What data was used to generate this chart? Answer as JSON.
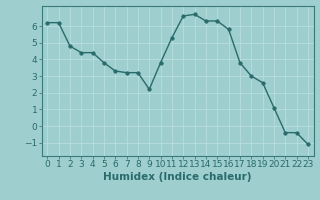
{
  "x": [
    0,
    1,
    2,
    3,
    4,
    5,
    6,
    7,
    8,
    9,
    10,
    11,
    12,
    13,
    14,
    15,
    16,
    17,
    18,
    19,
    20,
    21,
    22,
    23
  ],
  "y": [
    6.2,
    6.2,
    4.8,
    4.4,
    4.4,
    3.8,
    3.3,
    3.2,
    3.2,
    2.2,
    3.8,
    5.3,
    6.6,
    6.7,
    6.3,
    6.3,
    5.8,
    3.8,
    3.0,
    2.6,
    1.1,
    -0.4,
    -0.4,
    -1.1
  ],
  "line_color": "#2a6b6b",
  "marker": "o",
  "marker_size": 2.5,
  "marker_color": "#2a6b6b",
  "bg_color": "#9ecece",
  "grid_color": "#b8dede",
  "xlabel": "Humidex (Indice chaleur)",
  "xlabel_fontsize": 7.5,
  "tick_fontsize": 6.5,
  "ylim": [
    -1.8,
    7.2
  ],
  "xlim": [
    -0.5,
    23.5
  ],
  "yticks": [
    -1,
    0,
    1,
    2,
    3,
    4,
    5,
    6
  ],
  "xticks": [
    0,
    1,
    2,
    3,
    4,
    5,
    6,
    7,
    8,
    9,
    10,
    11,
    12,
    13,
    14,
    15,
    16,
    17,
    18,
    19,
    20,
    21,
    22,
    23
  ]
}
